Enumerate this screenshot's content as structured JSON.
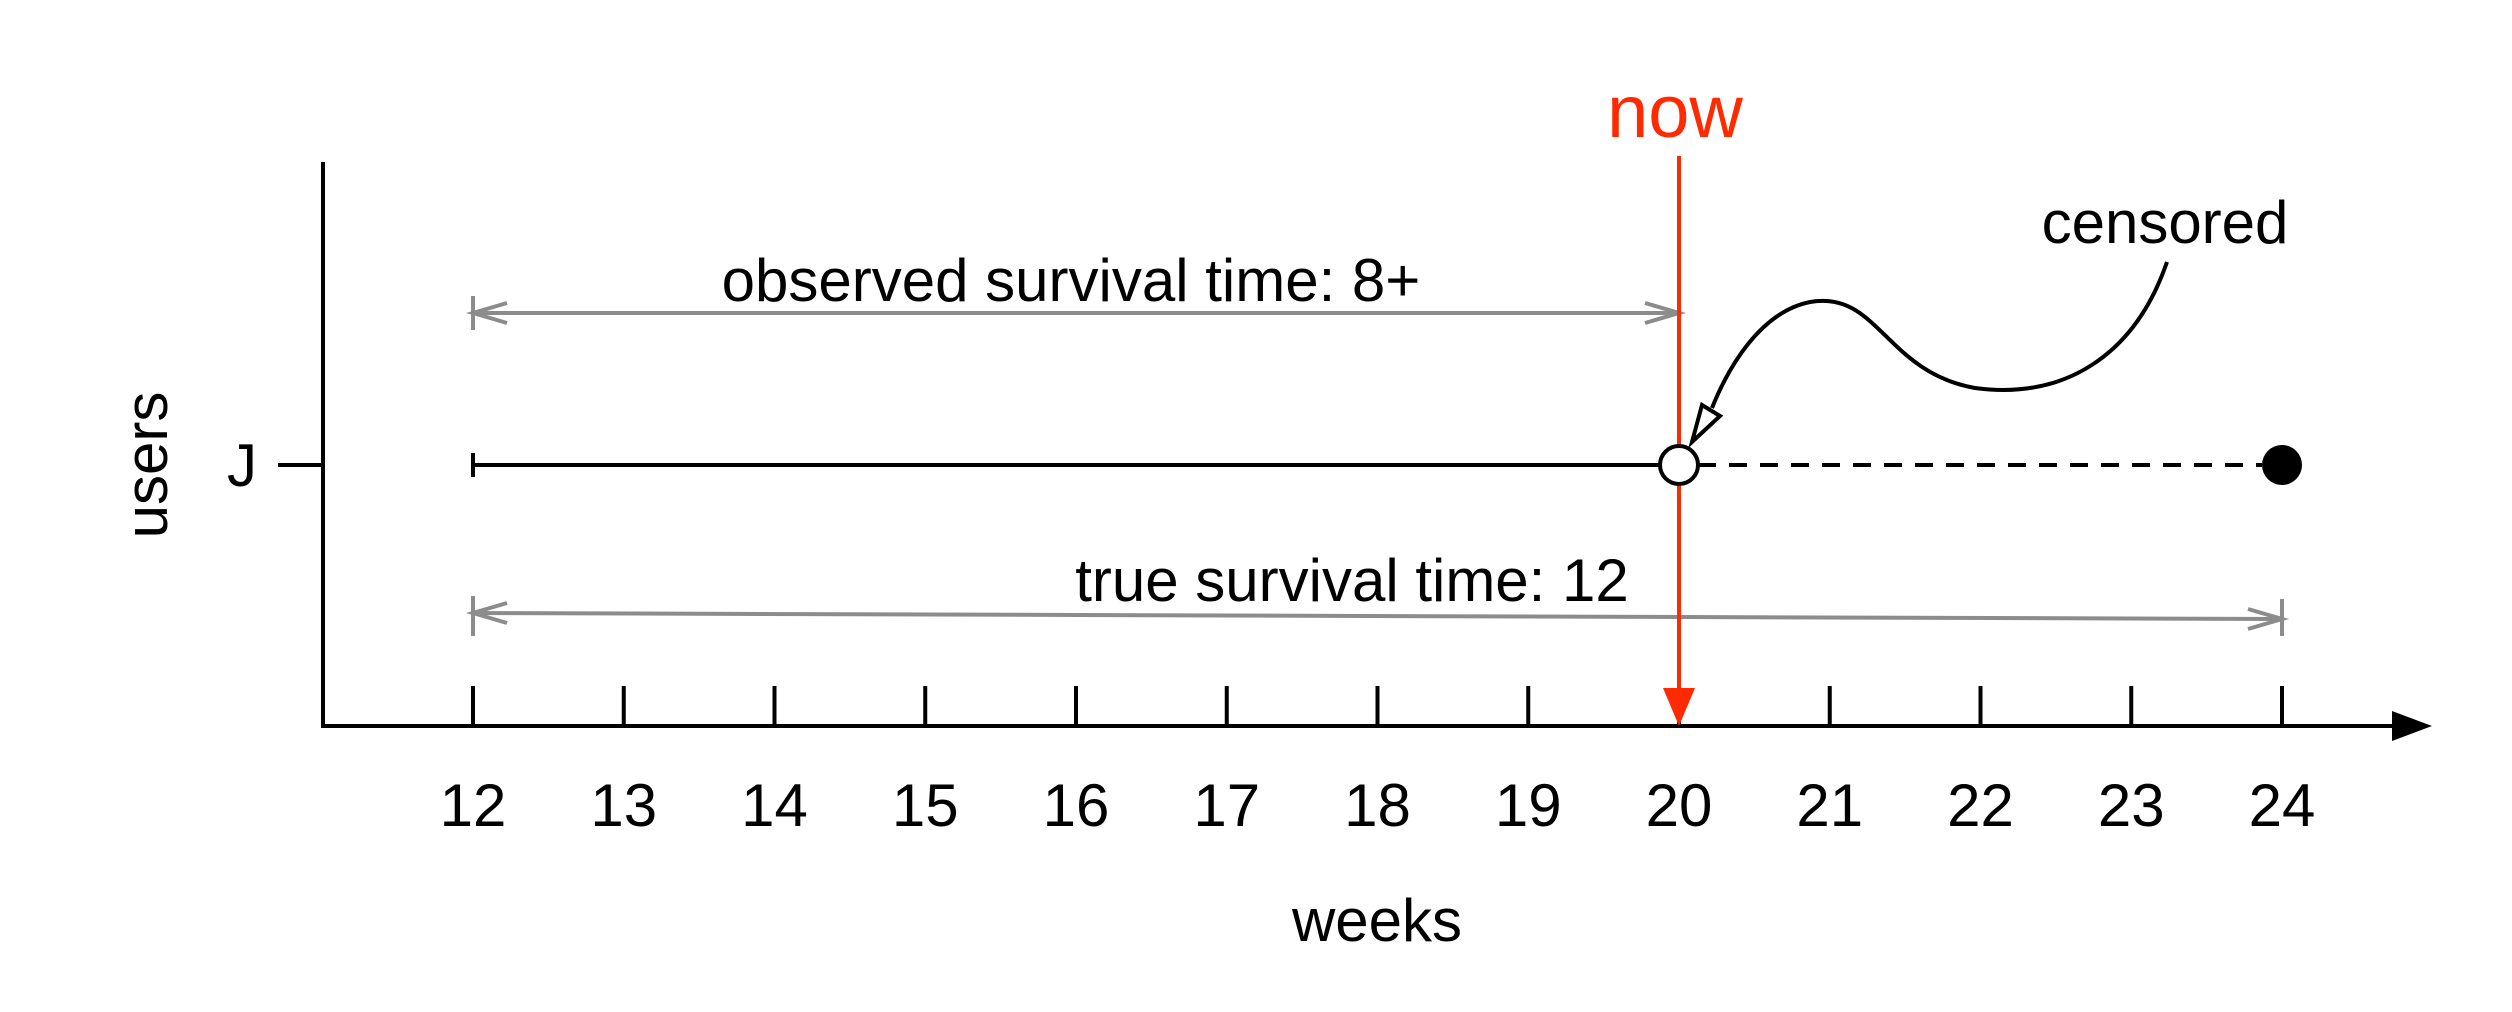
{
  "diagram": {
    "x_axis": {
      "label": "weeks",
      "ticks": [
        "12",
        "13",
        "14",
        "15",
        "16",
        "17",
        "18",
        "19",
        "20",
        "21",
        "22",
        "23",
        "24"
      ],
      "min": 12,
      "max": 24
    },
    "y_axis": {
      "label": "users",
      "categories": [
        "J"
      ]
    },
    "now": {
      "label": "now",
      "week": 20,
      "color": "#ff2a00"
    },
    "observed": {
      "label": "observed survival time: 8+",
      "start": 12,
      "end": 20,
      "color": "#8c8c8c"
    },
    "true_time": {
      "label": "true survival time: 12",
      "start": 12,
      "end": 24,
      "color": "#8c8c8c"
    },
    "user_j": {
      "start": 12,
      "censored_at": 20,
      "event_at": 24
    },
    "censored_note": {
      "label": "censored"
    }
  }
}
